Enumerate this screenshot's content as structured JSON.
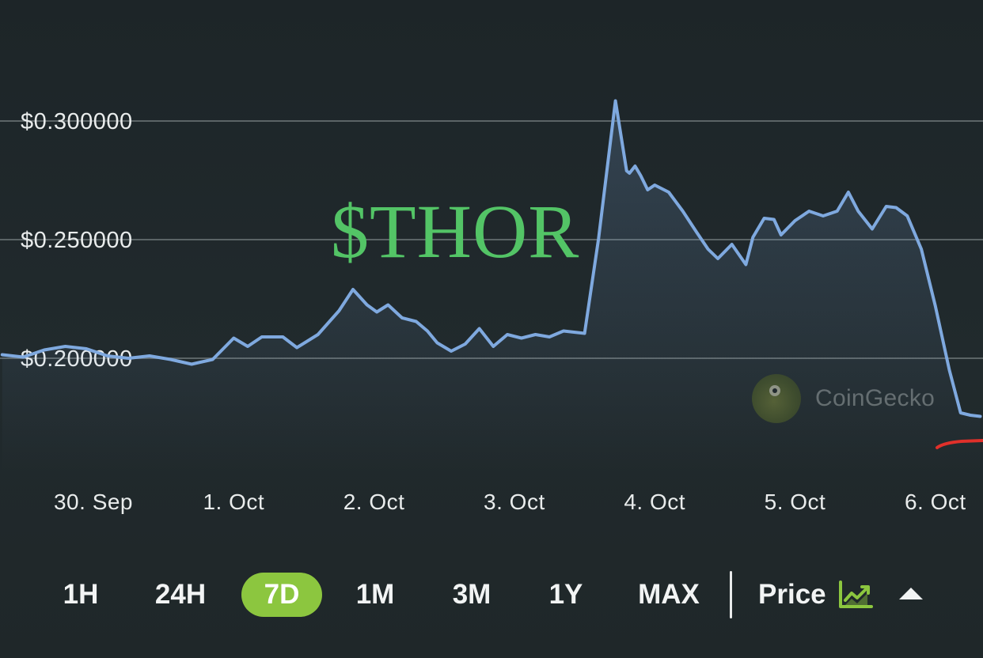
{
  "overlay": {
    "title": "$THOR"
  },
  "watermark": {
    "text": "CoinGecko",
    "icon": "gecko-logo-icon"
  },
  "chart_data": {
    "type": "area",
    "yticks": [
      "$0.300000",
      "$0.250000",
      "$0.200000"
    ],
    "ytick_values": [
      0.3,
      0.25,
      0.2
    ],
    "xticks": [
      "30. Sep",
      "1. Oct",
      "2. Oct",
      "3. Oct",
      "4. Oct",
      "5. Oct",
      "6. Oct"
    ],
    "x": [
      -0.65,
      -0.5,
      -0.35,
      -0.2,
      -0.05,
      0.1,
      0.25,
      0.4,
      0.55,
      0.7,
      0.85,
      1.0,
      1.1,
      1.2,
      1.35,
      1.45,
      1.6,
      1.75,
      1.85,
      1.95,
      2.02,
      2.1,
      2.2,
      2.3,
      2.38,
      2.45,
      2.55,
      2.65,
      2.75,
      2.85,
      2.95,
      3.05,
      3.15,
      3.25,
      3.35,
      3.5,
      3.6,
      3.72,
      3.8,
      3.82,
      3.86,
      3.9,
      3.95,
      4.0,
      4.1,
      4.2,
      4.3,
      4.38,
      4.45,
      4.55,
      4.65,
      4.7,
      4.78,
      4.85,
      4.9,
      5.0,
      5.1,
      5.2,
      5.3,
      5.38,
      5.45,
      5.55,
      5.65,
      5.72,
      5.8,
      5.9,
      6.0,
      6.1,
      6.18,
      6.25,
      6.32
    ],
    "y": [
      0.2015,
      0.2005,
      0.2035,
      0.205,
      0.204,
      0.201,
      0.2,
      0.201,
      0.1995,
      0.1975,
      0.1995,
      0.2085,
      0.205,
      0.209,
      0.209,
      0.2045,
      0.21,
      0.22,
      0.229,
      0.2225,
      0.2195,
      0.2225,
      0.217,
      0.2155,
      0.2115,
      0.2065,
      0.203,
      0.206,
      0.2125,
      0.205,
      0.21,
      0.2085,
      0.21,
      0.209,
      0.2115,
      0.2105,
      0.2505,
      0.3085,
      0.279,
      0.278,
      0.281,
      0.277,
      0.271,
      0.273,
      0.27,
      0.262,
      0.253,
      0.246,
      0.242,
      0.248,
      0.2395,
      0.251,
      0.259,
      0.2585,
      0.252,
      0.258,
      0.262,
      0.26,
      0.262,
      0.27,
      0.262,
      0.2545,
      0.264,
      0.2635,
      0.26,
      0.246,
      0.222,
      0.195,
      0.177,
      0.176,
      0.1755
    ],
    "ylim": [
      0.17,
      0.315
    ],
    "xlim": [
      -0.65,
      6.32
    ],
    "line_color": "#7fa9df",
    "fill_color": "#7fa9df",
    "grid": true
  },
  "toolbar": {
    "ranges": [
      {
        "label": "1H",
        "active": false
      },
      {
        "label": "24H",
        "active": false
      },
      {
        "label": "7D",
        "active": true
      },
      {
        "label": "1M",
        "active": false
      },
      {
        "label": "3M",
        "active": false
      },
      {
        "label": "1Y",
        "active": false
      },
      {
        "label": "MAX",
        "active": false
      }
    ],
    "price_label": "Price",
    "price_icon": "line-chart-icon",
    "caret_icon": "caret-up-icon"
  },
  "colors": {
    "background": "#1f2629",
    "accent": "#8cc63f",
    "title": "#53c466",
    "line": "#7fa9df",
    "annotation": "#e0302a"
  }
}
